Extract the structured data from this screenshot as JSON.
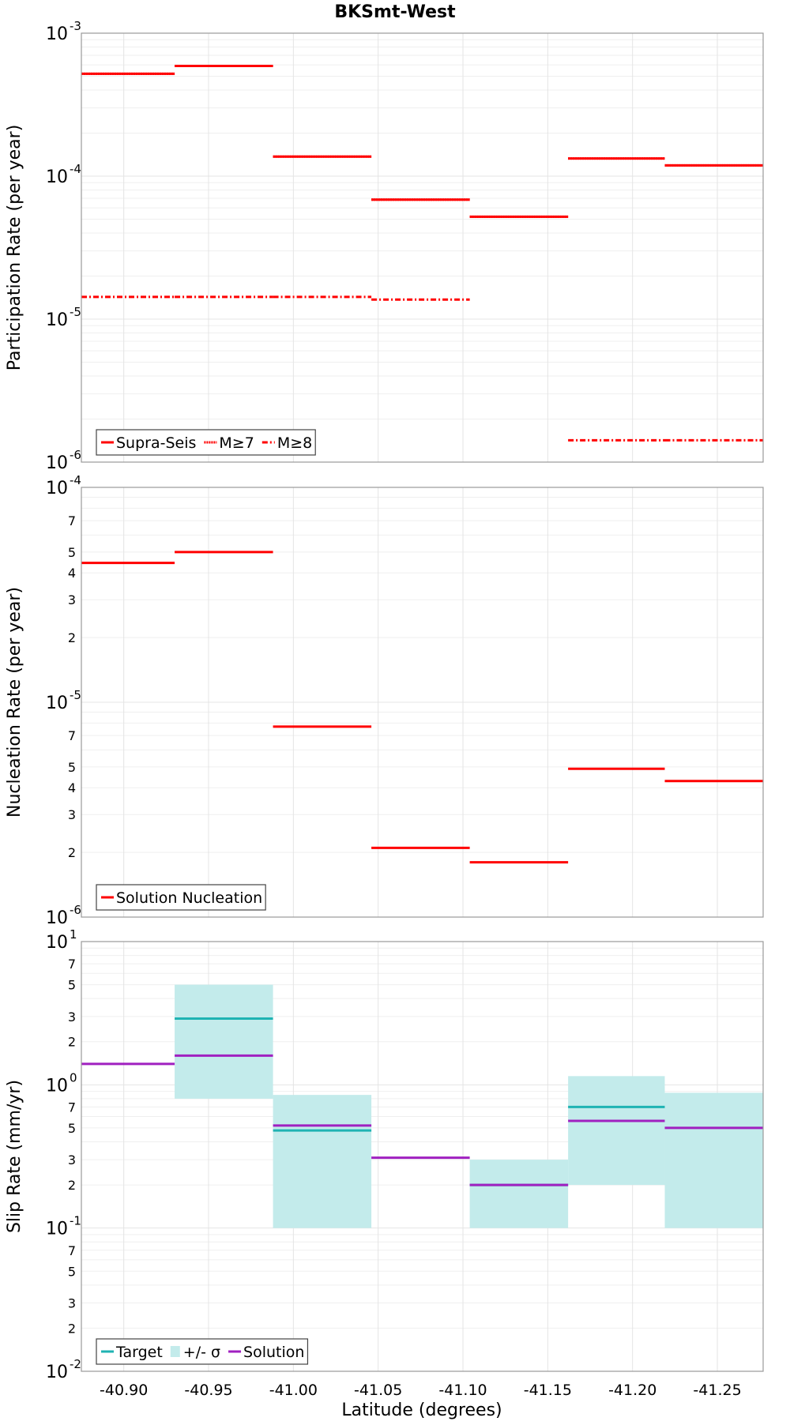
{
  "title": "BKSmt-West",
  "xlabel": "Latitude (degrees)",
  "x_ticks": [
    "-40.90",
    "-40.95",
    "-41.00",
    "-41.05",
    "-41.10",
    "-41.15",
    "-41.20",
    "-41.25"
  ],
  "colors": {
    "red": "#ff0000",
    "target": "#1fb3b3",
    "band": "#c3ebeb",
    "solution": "#a020c0",
    "grid": "#e4e4e4",
    "frame": "#999999"
  },
  "chart_data": [
    {
      "type": "line",
      "name": "participation",
      "ylabel": "Participation Rate (per year)",
      "yscale": "log",
      "ylim": [
        1e-06,
        0.001
      ],
      "xlim": [
        -40.875,
        -41.277
      ],
      "x_tick_values": [
        -40.9,
        -40.95,
        -41.0,
        -41.05,
        -41.1,
        -41.15,
        -41.2,
        -41.25
      ],
      "y_tick_labels": [
        {
          "base": "10",
          "exp": "-3",
          "value": 0.001
        },
        {
          "base": "10",
          "exp": "-4",
          "value": 0.0001
        },
        {
          "base": "10",
          "exp": "-5",
          "value": 1e-05
        },
        {
          "base": "10",
          "exp": "-6",
          "value": 1e-06
        }
      ],
      "segment_edges": [
        -40.875,
        -40.93,
        -40.988,
        -41.046,
        -41.104,
        -41.162,
        -41.219,
        -41.277
      ],
      "series": [
        {
          "name": "Supra-Seis",
          "style": "solid",
          "values": [
            0.00052,
            0.00059,
            0.000137,
            6.85e-05,
            5.2e-05,
            0.000133,
            0.000119
          ]
        },
        {
          "name": "M≥7",
          "style": "dotted",
          "values": [
            0.00052,
            0.00059,
            0.000137,
            6.85e-05,
            5.2e-05,
            0.000133,
            0.000119
          ]
        },
        {
          "name": "M≥8",
          "style": "dashdot",
          "values": [
            1.43e-05,
            1.43e-05,
            1.43e-05,
            1.37e-05,
            null,
            1.42e-06,
            1.42e-06
          ]
        }
      ],
      "legend": [
        {
          "label": "Supra-Seis",
          "style": "solid"
        },
        {
          "label": "M≥7",
          "style": "dotted"
        },
        {
          "label": "M≥8",
          "style": "dashdot"
        }
      ]
    },
    {
      "type": "line",
      "name": "nucleation",
      "ylabel": "Nucleation Rate (per year)",
      "yscale": "log",
      "ylim": [
        1e-06,
        0.0001
      ],
      "xlim": [
        -40.875,
        -41.277
      ],
      "x_tick_values": [
        -40.9,
        -40.95,
        -41.0,
        -41.05,
        -41.1,
        -41.15,
        -41.2,
        -41.25
      ],
      "y_tick_labels": [
        {
          "base": "10",
          "exp": "-4",
          "value": 0.0001
        },
        {
          "label": "7",
          "value": 7e-05
        },
        {
          "label": "5",
          "value": 5e-05
        },
        {
          "label": "4",
          "value": 4e-05
        },
        {
          "label": "3",
          "value": 3e-05
        },
        {
          "label": "2",
          "value": 2e-05
        },
        {
          "base": "10",
          "exp": "-5",
          "value": 1e-05
        },
        {
          "label": "7",
          "value": 7e-06
        },
        {
          "label": "5",
          "value": 5e-06
        },
        {
          "label": "4",
          "value": 4e-06
        },
        {
          "label": "3",
          "value": 3e-06
        },
        {
          "label": "2",
          "value": 2e-06
        },
        {
          "base": "10",
          "exp": "-6",
          "value": 1e-06
        }
      ],
      "segment_edges": [
        -40.875,
        -40.93,
        -40.988,
        -41.046,
        -41.104,
        -41.162,
        -41.219,
        -41.277
      ],
      "series": [
        {
          "name": "Solution Nucleation",
          "style": "solid",
          "values": [
            4.45e-05,
            5e-05,
            7.7e-06,
            2.1e-06,
            1.8e-06,
            4.9e-06,
            4.3e-06
          ]
        }
      ],
      "legend": [
        {
          "label": "Solution Nucleation",
          "style": "solid"
        }
      ]
    },
    {
      "type": "line",
      "name": "slip",
      "ylabel": "Slip Rate (mm/yr)",
      "yscale": "log",
      "ylim": [
        0.01,
        10
      ],
      "xlim": [
        -40.875,
        -41.277
      ],
      "x_tick_values": [
        -40.9,
        -40.95,
        -41.0,
        -41.05,
        -41.1,
        -41.15,
        -41.2,
        -41.25
      ],
      "y_tick_labels": [
        {
          "base": "10",
          "exp": "1",
          "value": 10
        },
        {
          "label": "7",
          "value": 7
        },
        {
          "label": "5",
          "value": 5
        },
        {
          "label": "3",
          "value": 3
        },
        {
          "label": "2",
          "value": 2
        },
        {
          "base": "10",
          "exp": "0",
          "value": 1
        },
        {
          "label": "7",
          "value": 0.7
        },
        {
          "label": "5",
          "value": 0.5
        },
        {
          "label": "3",
          "value": 0.3
        },
        {
          "label": "2",
          "value": 0.2
        },
        {
          "base": "10",
          "exp": "-1",
          "value": 0.1
        },
        {
          "label": "7",
          "value": 0.07
        },
        {
          "label": "5",
          "value": 0.05
        },
        {
          "label": "3",
          "value": 0.03
        },
        {
          "label": "2",
          "value": 0.02
        },
        {
          "base": "10",
          "exp": "-2",
          "value": 0.01
        }
      ],
      "segment_edges": [
        -40.875,
        -40.93,
        -40.988,
        -41.046,
        -41.104,
        -41.162,
        -41.219,
        -41.277
      ],
      "bands": [
        {
          "name": "+/- σ",
          "low": [
            null,
            0.8,
            0.1,
            null,
            0.1,
            0.2,
            0.1
          ],
          "high": [
            null,
            5.0,
            0.85,
            null,
            0.3,
            1.15,
            0.88
          ]
        }
      ],
      "series": [
        {
          "name": "Target",
          "style": "solid",
          "color": "target",
          "values": [
            null,
            2.9,
            0.48,
            null,
            0.2,
            0.7,
            null
          ]
        },
        {
          "name": "Solution",
          "style": "solid",
          "color": "solution",
          "values": [
            1.4,
            1.6,
            0.52,
            0.31,
            0.2,
            0.56,
            0.5
          ]
        }
      ],
      "legend": [
        {
          "label": "Target",
          "style": "line",
          "color": "target"
        },
        {
          "label": "+/- σ",
          "style": "box",
          "color": "band"
        },
        {
          "label": "Solution",
          "style": "line",
          "color": "solution"
        }
      ]
    }
  ]
}
